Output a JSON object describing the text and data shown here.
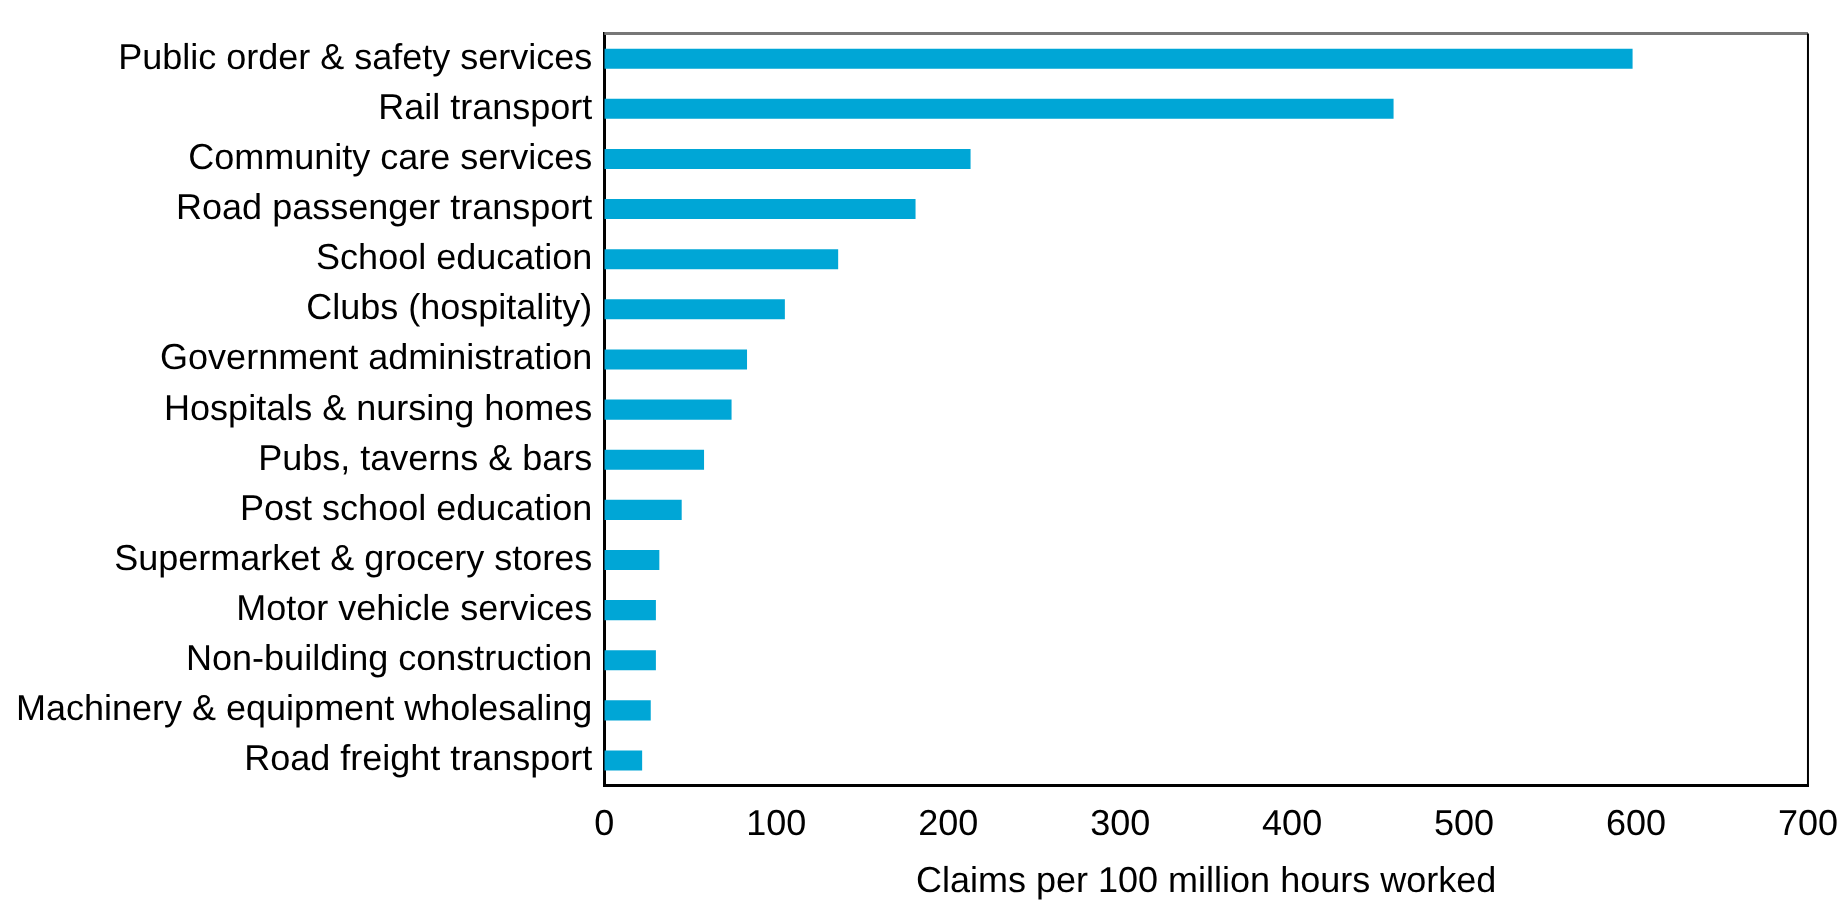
{
  "chart_data": {
    "type": "bar",
    "orientation": "horizontal",
    "xlabel": "Claims per 100 million hours worked",
    "categories": [
      "Public order & safety services",
      "Rail transport",
      "Community care services",
      "Road passenger transport",
      "School education",
      "Clubs (hospitality)",
      "Government administration",
      "Hospitals & nursing homes",
      "Pubs, taverns & bars",
      "Post school education",
      "Supermarket & grocery stores",
      "Motor vehicle services",
      "Non-building construction",
      "Machinery & equipment wholesaling",
      "Road freight transport"
    ],
    "values": [
      598,
      459,
      213,
      181,
      136,
      105,
      83,
      74,
      58,
      45,
      32,
      30,
      30,
      27,
      22
    ],
    "color": "#00a6d6",
    "xlim": [
      0,
      700
    ],
    "xticks": [
      0,
      100,
      200,
      300,
      400,
      500,
      600,
      700
    ],
    "grid": false,
    "legend": false
  }
}
